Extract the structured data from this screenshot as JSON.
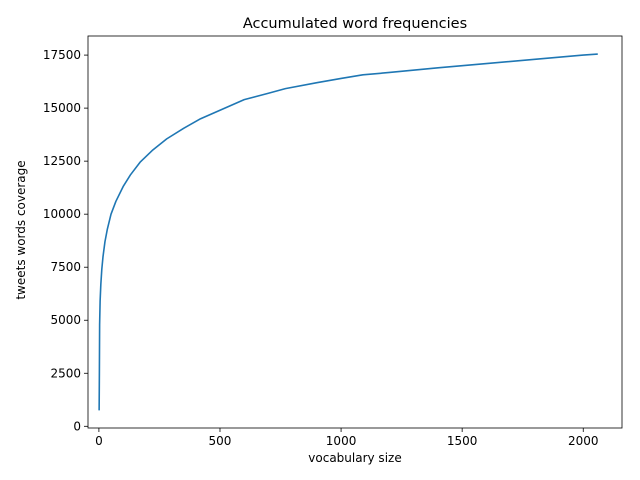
{
  "chart_data": {
    "type": "line",
    "title": "Accumulated word frequencies",
    "xlabel": "vocabulary size",
    "ylabel": "tweets words coverage",
    "xlim": [
      -45,
      2160
    ],
    "ylim": [
      -80,
      18400
    ],
    "xticks": [
      0,
      500,
      1000,
      1500,
      2000
    ],
    "yticks": [
      0,
      2500,
      5000,
      7500,
      10000,
      12500,
      15000,
      17500
    ],
    "grid": false,
    "series": [
      {
        "color": "#1f77b4",
        "x": [
          1,
          2,
          3,
          5,
          8,
          12,
          17,
          25,
          35,
          50,
          70,
          100,
          130,
          170,
          220,
          280,
          350,
          420,
          500,
          600,
          700,
          770,
          900,
          1000,
          1090,
          1200,
          1400,
          1600,
          1800,
          2000,
          2060
        ],
        "y": [
          750,
          2500,
          4800,
          5900,
          6700,
          7400,
          8000,
          8700,
          9300,
          10000,
          10600,
          11300,
          11850,
          12450,
          13000,
          13550,
          14050,
          14500,
          14900,
          15400,
          15700,
          15920,
          16200,
          16400,
          16570,
          16680,
          16900,
          17100,
          17300,
          17500,
          17550
        ]
      }
    ]
  }
}
